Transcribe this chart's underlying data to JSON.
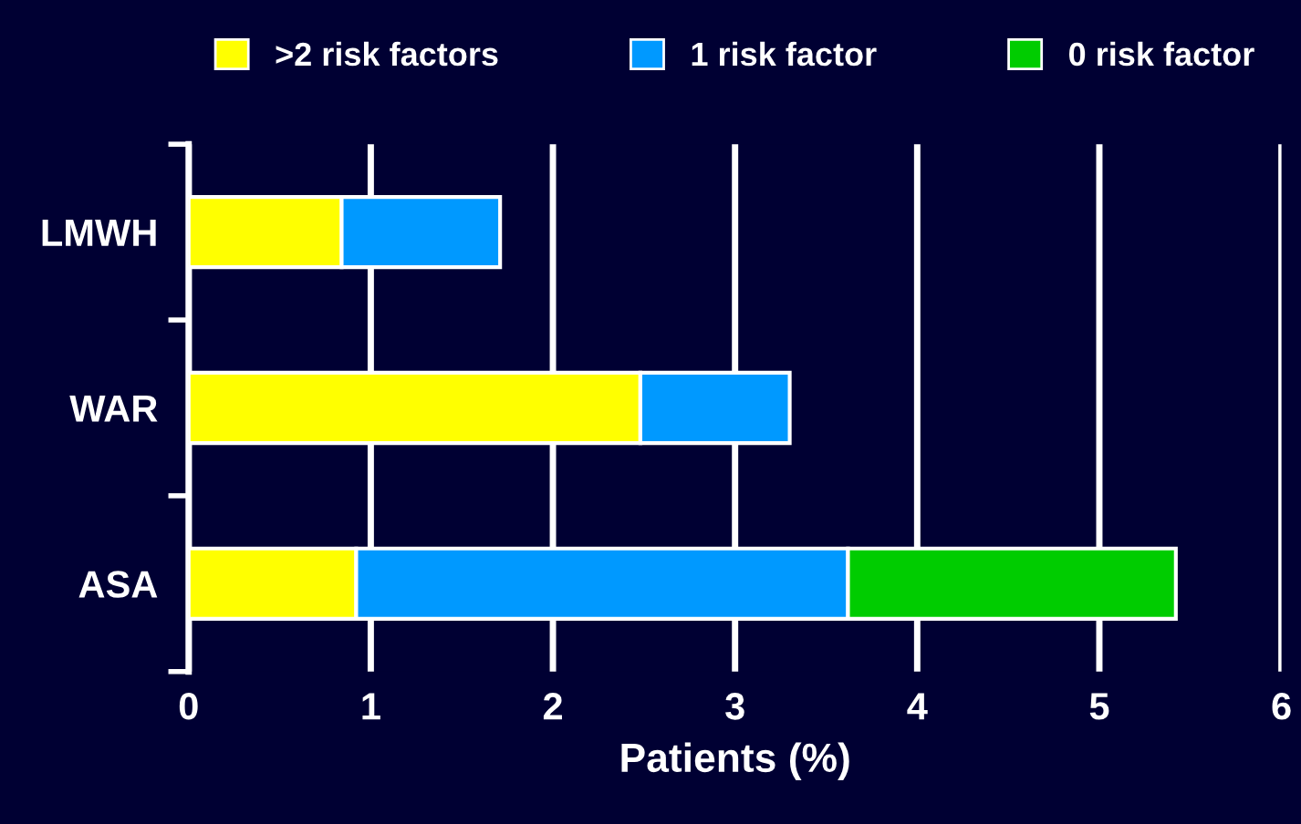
{
  "chart_data": {
    "type": "bar",
    "orientation": "horizontal",
    "stacked": true,
    "categories": [
      "LMWH",
      "WAR",
      "ASA"
    ],
    "series": [
      {
        "name": ">2 risk factors",
        "color": "#ffff00",
        "values": [
          0.84,
          2.48,
          0.92
        ]
      },
      {
        "name": "1 risk factor",
        "color": "#0099ff",
        "values": [
          0.87,
          0.82,
          2.7
        ]
      },
      {
        "name": "0 risk factor",
        "color": "#00cc00",
        "values": [
          null,
          null,
          1.8
        ]
      }
    ],
    "xlabel": "Patients (%)",
    "xlim": [
      0,
      6
    ],
    "xticks": [
      0,
      1,
      2,
      3,
      4,
      5,
      6
    ],
    "grid": "x",
    "legend": "top"
  }
}
